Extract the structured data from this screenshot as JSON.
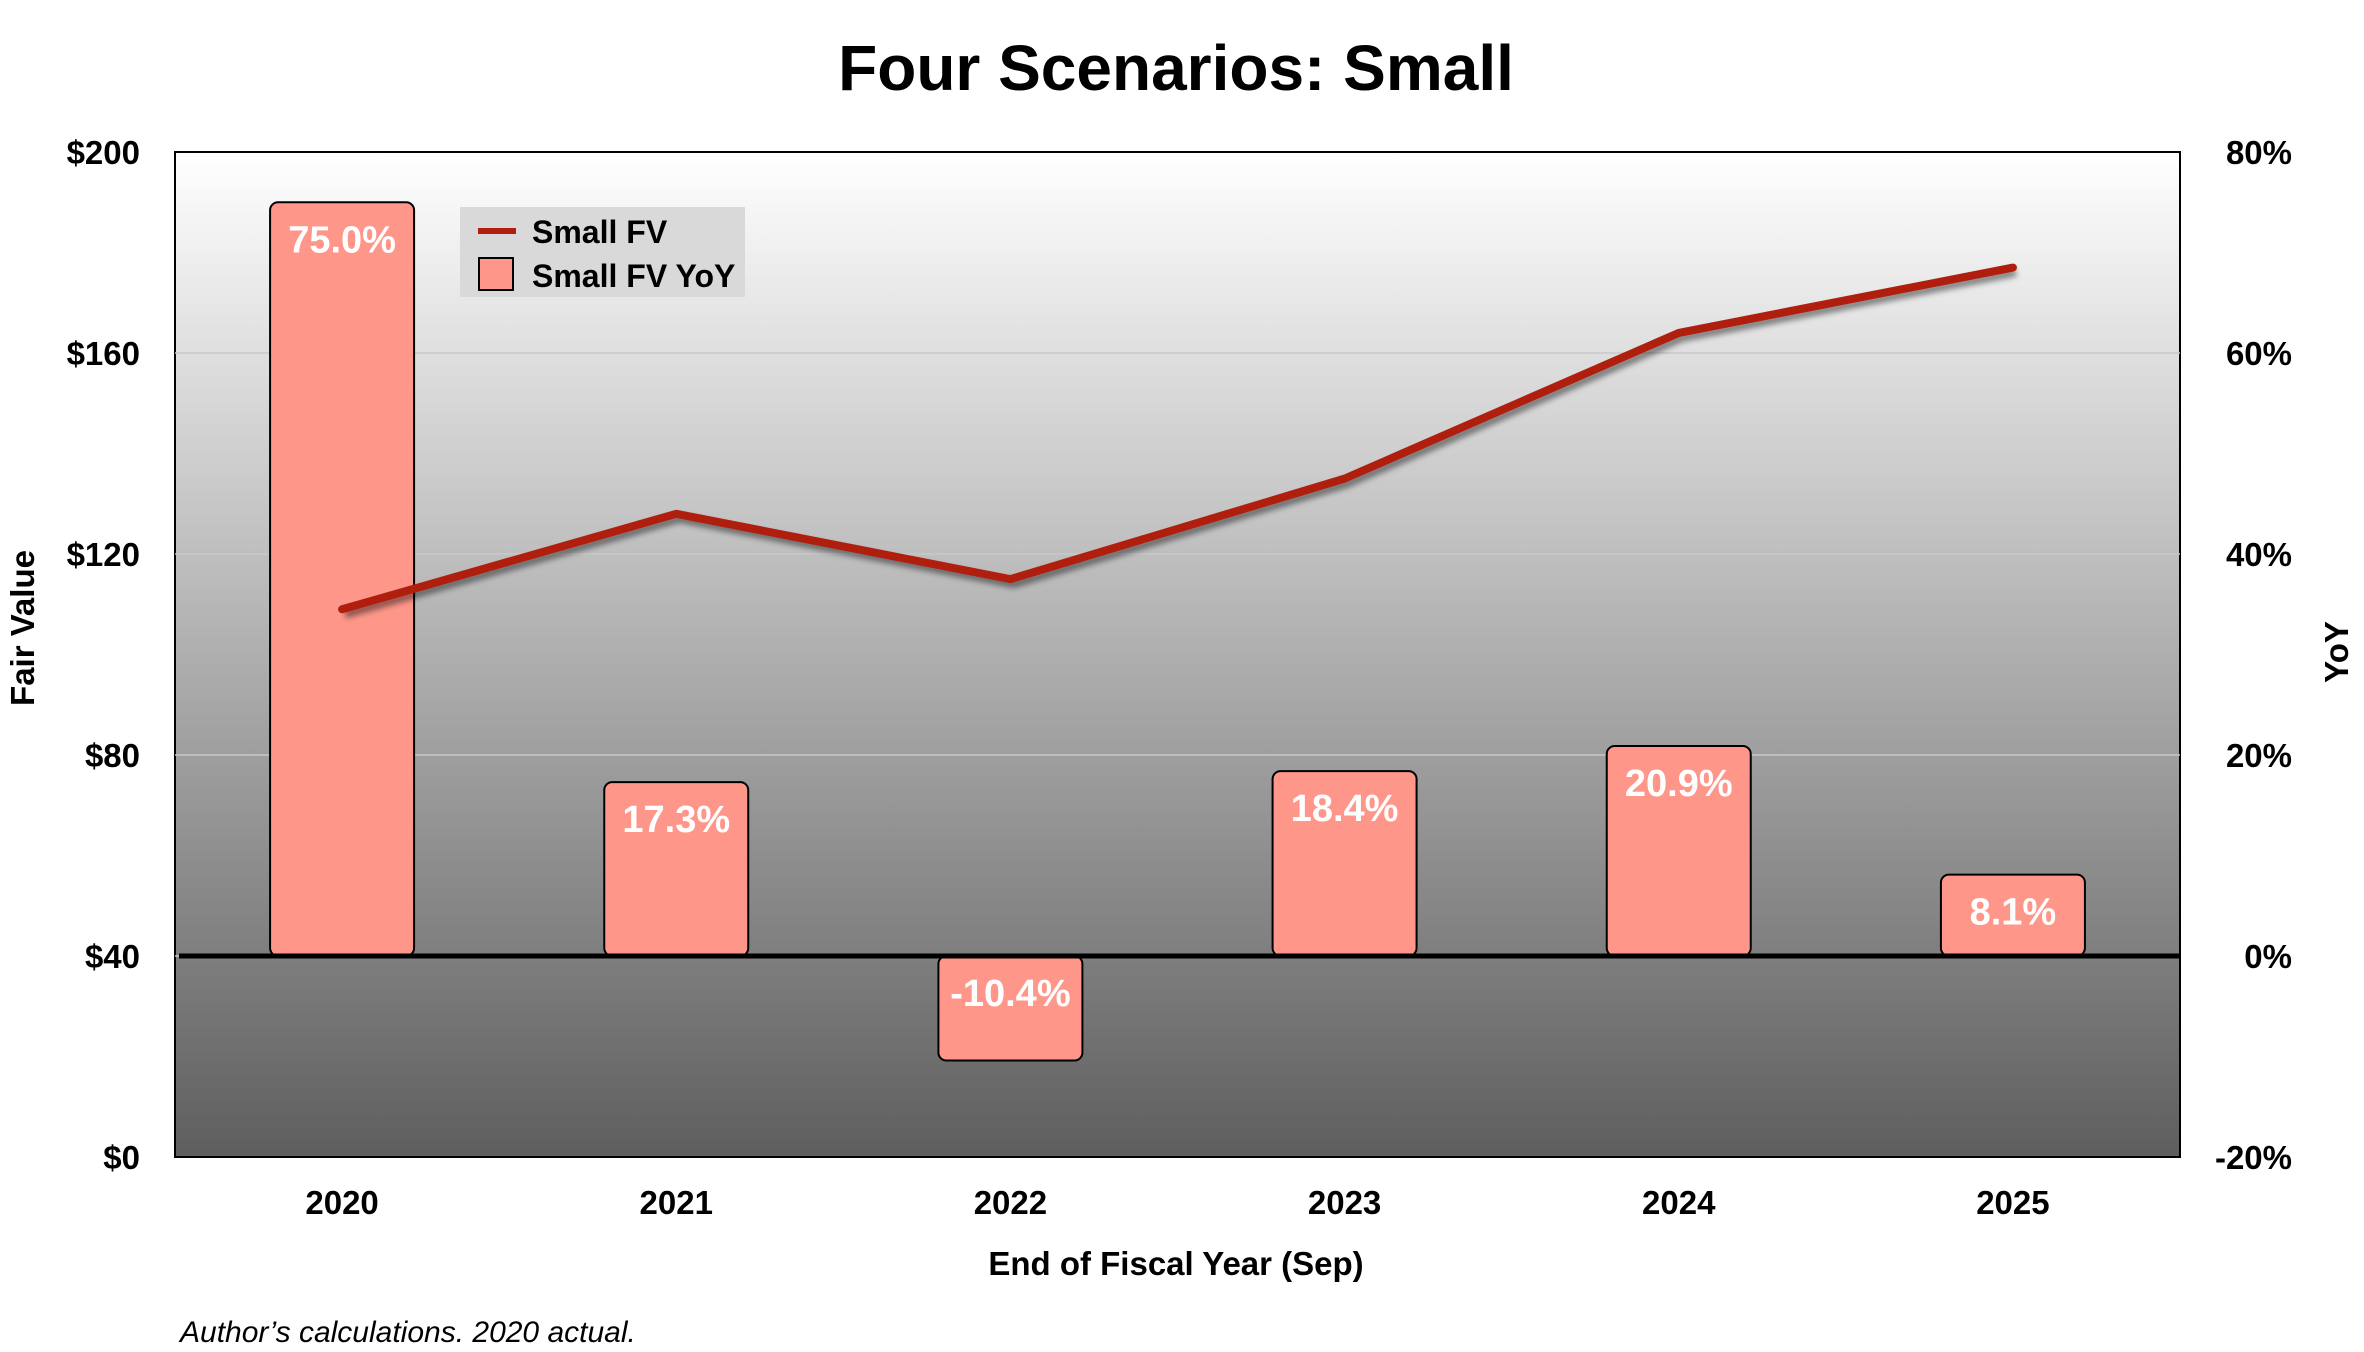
{
  "chart_data": {
    "type": "bar+line",
    "title": "Four Scenarios: Small",
    "xlabel": "End of Fiscal Year (Sep)",
    "ylabel": "Fair Value",
    "y2label": "YoY",
    "categories": [
      "2020",
      "2021",
      "2022",
      "2023",
      "2024",
      "2025"
    ],
    "series": [
      {
        "name": "Small FV",
        "type": "line",
        "axis": "left",
        "values": [
          109,
          128,
          115,
          135,
          164,
          177
        ],
        "color": "#b01e0e"
      },
      {
        "name": "Small FV YoY",
        "type": "bar",
        "axis": "right",
        "values": [
          75.0,
          17.3,
          -10.4,
          18.4,
          20.9,
          8.1
        ],
        "labels": [
          "75.0%",
          "17.3%",
          "-10.4%",
          "18.4%",
          "20.9%",
          "8.1%"
        ],
        "color": "#ff968a"
      }
    ],
    "ylim": [
      0,
      200
    ],
    "yticks": [
      "$0",
      "$40",
      "$80",
      "$120",
      "$160",
      "$200"
    ],
    "yticks_values": [
      0,
      40,
      80,
      120,
      160,
      200
    ],
    "y2lim": [
      -20,
      80
    ],
    "y2ticks": [
      "-20%",
      "0%",
      "20%",
      "40%",
      "60%",
      "80%"
    ],
    "y2ticks_values": [
      -20,
      0,
      20,
      40,
      60,
      80
    ],
    "legend": {
      "position": "top-left",
      "entries": [
        "Small FV",
        "Small FV YoY"
      ]
    },
    "grid": true
  },
  "source_note": "Author’s calculations. 2020 actual."
}
